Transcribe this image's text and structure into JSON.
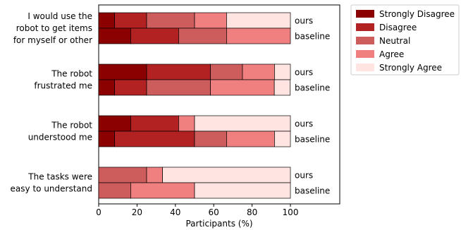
{
  "chart_data": {
    "type": "bar",
    "orientation": "horizontal",
    "stacked": true,
    "xlabel": "Participants (%)",
    "xlim": [
      0,
      125
    ],
    "xticks": [
      0,
      20,
      40,
      60,
      80,
      100
    ],
    "grid": false,
    "legend": {
      "position": "outside-top-right",
      "entries": [
        {
          "label": "Strongly Disagree",
          "color": "#8b0000"
        },
        {
          "label": "Disagree",
          "color": "#b22222"
        },
        {
          "label": "Neutral",
          "color": "#cd5c5c"
        },
        {
          "label": "Agree",
          "color": "#f08080"
        },
        {
          "label": "Strongly Agree",
          "color": "#ffe4e1"
        }
      ]
    },
    "questions": [
      {
        "label": [
          "I would use the",
          "robot to get items",
          "for myself or other"
        ],
        "bars": [
          {
            "name": "ours",
            "values": [
              8.3,
              16.7,
              25.0,
              16.7,
              33.3
            ]
          },
          {
            "name": "baseline",
            "values": [
              16.7,
              25.0,
              25.0,
              33.3,
              0
            ]
          }
        ]
      },
      {
        "label": [
          "The robot",
          "frustrated me"
        ],
        "bars": [
          {
            "name": "ours",
            "values": [
              25.0,
              33.3,
              16.7,
              16.7,
              8.3
            ]
          },
          {
            "name": "baseline",
            "values": [
              8.3,
              16.7,
              33.3,
              33.3,
              8.3
            ]
          }
        ]
      },
      {
        "label": [
          "The robot",
          "understood me"
        ],
        "bars": [
          {
            "name": "ours",
            "values": [
              16.7,
              25.0,
              0,
              8.3,
              50.0
            ]
          },
          {
            "name": "baseline",
            "values": [
              8.3,
              41.7,
              16.7,
              25.0,
              8.3
            ]
          }
        ]
      },
      {
        "label": [
          "The tasks were",
          "easy to understand"
        ],
        "bars": [
          {
            "name": "ours",
            "values": [
              0,
              0,
              25.0,
              8.3,
              66.7
            ]
          },
          {
            "name": "baseline",
            "values": [
              0,
              0,
              16.7,
              33.3,
              50.0
            ]
          }
        ]
      }
    ]
  }
}
